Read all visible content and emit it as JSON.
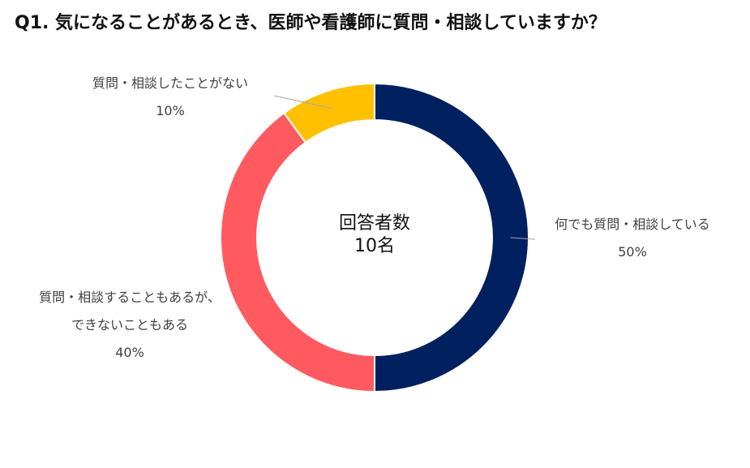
{
  "title": "Q1. 気になることがあるとき、医師や看護師に質問・相談していますか？",
  "center_label": {
    "line1": "回答者数",
    "line2": "10名"
  },
  "colors": {
    "navy": "#00205f",
    "red": "#ff5a5f",
    "yellow": "#ffc000",
    "leader": "#a6a6a6"
  },
  "chart_data": {
    "type": "pie",
    "variant": "donut",
    "title": "Q1. 気になることがあるとき、医師や看護師に質問・相談していますか？",
    "center_text": "回答者数 10名",
    "slices": [
      {
        "label": "何でも質問・相談している",
        "value": 50,
        "display": "50%",
        "color": "#00205f"
      },
      {
        "label": "質問・相談することもあるが、できないこともある",
        "value": 40,
        "display": "40%",
        "color": "#ff5a5f"
      },
      {
        "label": "質問・相談したことがない",
        "value": 10,
        "display": "10%",
        "color": "#ffc000"
      }
    ]
  },
  "labels": {
    "slice0": {
      "line1": "何でも質問・相談している",
      "pct": "50%"
    },
    "slice1": {
      "line1": "質問・相談することもあるが、",
      "line2": "できないこともある",
      "pct": "40%"
    },
    "slice2": {
      "line1": "質問・相談したことがない",
      "pct": "10%"
    }
  }
}
